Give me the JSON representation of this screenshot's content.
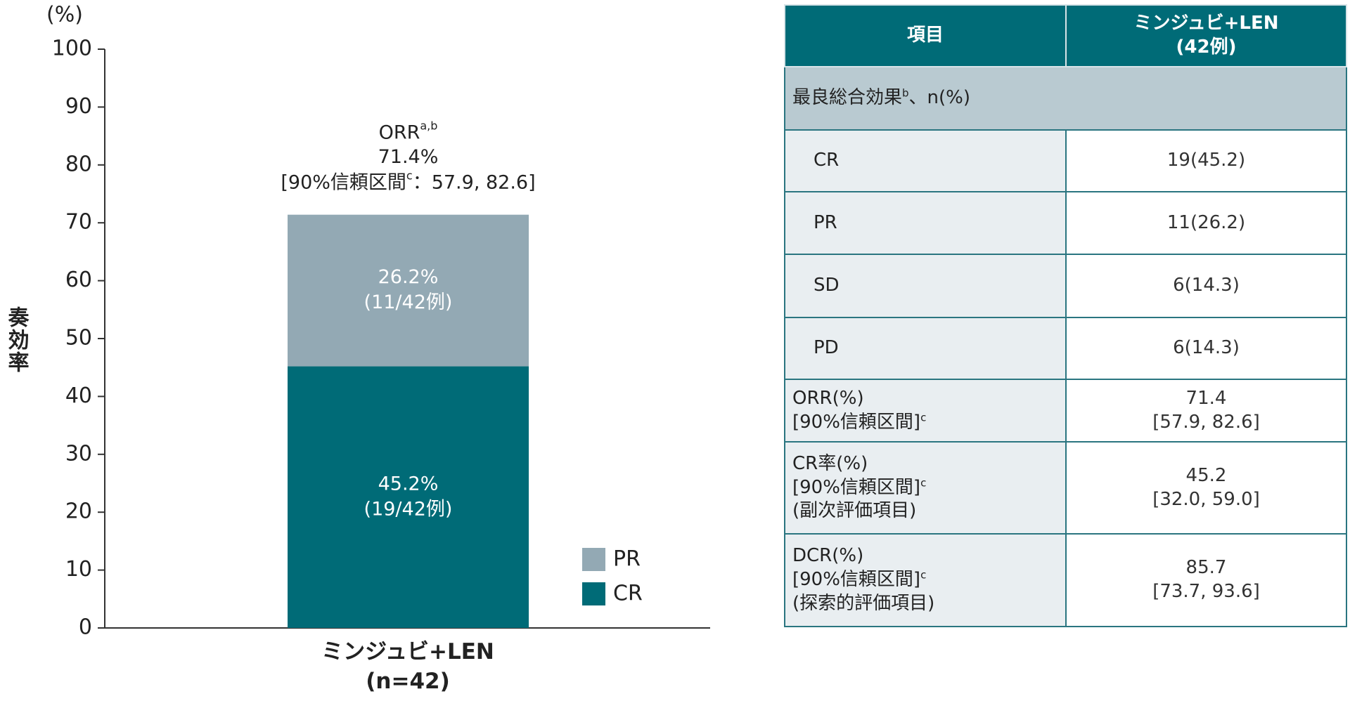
{
  "chart_data": {
    "type": "stacked_bar",
    "unit_label": "(%)",
    "y_label": "奏効率",
    "categories": [
      "ミンジュビ+LEN\n(n=42)"
    ],
    "series": [
      {
        "name": "CR",
        "color": "#006b77",
        "values": [
          45.2
        ],
        "value_labels": [
          "45.2%"
        ],
        "counts": [
          "(19/42例)"
        ]
      },
      {
        "name": "PR",
        "color": "#93a9b4",
        "values": [
          26.2
        ],
        "value_labels": [
          "26.2%"
        ],
        "counts": [
          "(11/42例)"
        ]
      }
    ],
    "total_annotation": {
      "label": "ORR",
      "label_sup": "a,b",
      "value": 71.4,
      "value_label": "71.4%",
      "ci_prefix": "[90%信頼区間",
      "ci_sup": "c",
      "ci_text": "：57.9, 82.6]"
    },
    "ylim": [
      0,
      100
    ],
    "yticks": [
      0,
      10,
      20,
      30,
      40,
      50,
      60,
      70,
      80,
      90,
      100
    ],
    "legend": "lower right"
  },
  "table": {
    "header": [
      [
        "項目"
      ],
      [
        "ミンジュビ+LEN",
        "(42例)"
      ]
    ],
    "section": {
      "text": "最良総合効果",
      "sup": "b",
      "after": "、n(%)"
    },
    "rows": [
      {
        "label": [
          {
            "text": "CR"
          }
        ],
        "value": [
          "19(45.2)"
        ]
      },
      {
        "label": [
          {
            "text": "PR"
          }
        ],
        "value": [
          "11(26.2)"
        ]
      },
      {
        "label": [
          {
            "text": "SD"
          }
        ],
        "value": [
          "6(14.3)"
        ]
      },
      {
        "label": [
          {
            "text": "PD"
          }
        ],
        "value": [
          "6(14.3)"
        ]
      },
      {
        "label": [
          {
            "text": "ORR(%)"
          },
          {
            "text": "[90%信頼区間]",
            "sup": "c"
          }
        ],
        "value": [
          "71.4",
          "[57.9, 82.6]"
        ]
      },
      {
        "label": [
          {
            "text": "CR率(%)"
          },
          {
            "text": "[90%信頼区間]",
            "sup": "c"
          },
          {
            "text": "(副次評価項目)"
          }
        ],
        "value": [
          "45.2",
          "[32.0, 59.0]"
        ]
      },
      {
        "label": [
          {
            "text": "DCR(%)"
          },
          {
            "text": "[90%信頼区間]",
            "sup": "c"
          },
          {
            "text": "(探索的評価項目)"
          }
        ],
        "value": [
          "85.7",
          "[73.7, 93.6]"
        ]
      }
    ]
  }
}
